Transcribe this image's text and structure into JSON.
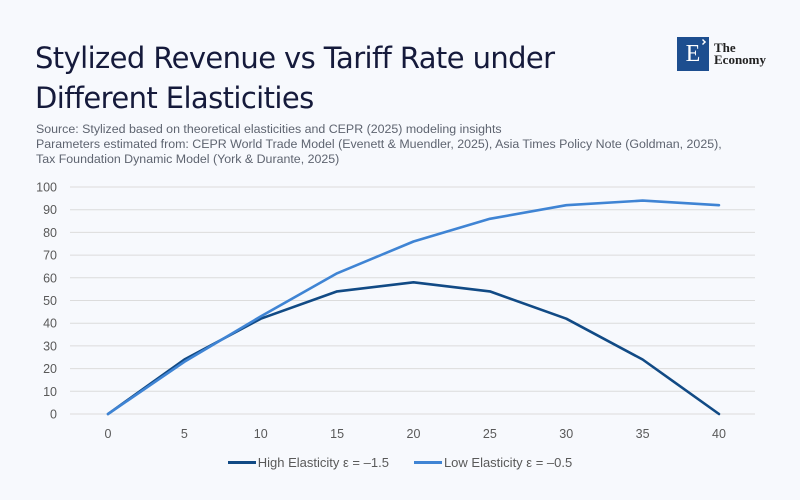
{
  "header": {
    "title": "Stylized Revenue vs Tariff Rate under Different Elasticities",
    "subtitle_lines": [
      "Source: Stylized based on theoretical elasticities and CEPR (2025) modeling insights",
      "Parameters estimated from: CEPR World Trade Model (Evenett & Muendler, 2025), Asia Times Policy Note (Goldman, 2025),",
      "Tax Foundation Dynamic Model (York & Durante, 2025)"
    ]
  },
  "logo": {
    "letter": "E",
    "line1": "The",
    "line2": "Economy",
    "color": "#1d4e8f"
  },
  "chart_data": {
    "type": "line",
    "title": "Stylized Revenue vs Tariff Rate under Different Elasticities",
    "xlabel": "",
    "ylabel": "",
    "x": [
      0,
      5,
      10,
      15,
      20,
      25,
      30,
      35,
      40
    ],
    "x_tick_labels": [
      "0",
      "5",
      "10",
      "15",
      "20",
      "25",
      "30",
      "35",
      "40"
    ],
    "y_ticks": [
      0,
      10,
      20,
      30,
      40,
      50,
      60,
      70,
      80,
      90,
      100
    ],
    "ylim": [
      0,
      100
    ],
    "grid": "horizontal",
    "legend_position": "bottom",
    "series": [
      {
        "name": "High Elasticity ε = –1.5",
        "color": "#114a85",
        "values": [
          0,
          24,
          42,
          54,
          58,
          54,
          42,
          24,
          0
        ]
      },
      {
        "name": "Low Elasticity ε = –0.5",
        "color": "#3f84d4",
        "values": [
          0,
          23,
          43,
          62,
          76,
          86,
          92,
          94,
          92
        ]
      }
    ]
  }
}
